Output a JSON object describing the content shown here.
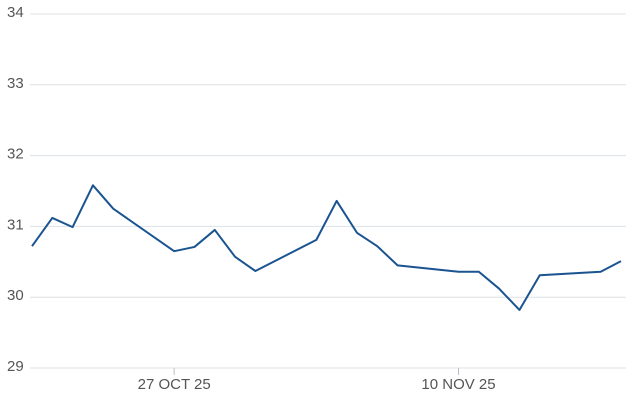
{
  "chart_data": {
    "type": "line",
    "x": [
      "2025-10-20",
      "2025-10-21",
      "2025-10-22",
      "2025-10-23",
      "2025-10-24",
      "2025-10-27",
      "2025-10-28",
      "2025-10-29",
      "2025-10-30",
      "2025-10-31",
      "2025-11-03",
      "2025-11-04",
      "2025-11-05",
      "2025-11-06",
      "2025-11-07",
      "2025-11-10",
      "2025-11-11",
      "2025-11-12",
      "2025-11-13",
      "2025-11-14",
      "2025-11-17",
      "2025-11-18"
    ],
    "series": [
      {
        "color": "#1a5490",
        "values": [
          30.72,
          31.12,
          30.99,
          31.58,
          31.25,
          30.65,
          30.71,
          30.95,
          30.57,
          30.37,
          30.81,
          31.36,
          30.91,
          30.72,
          30.45,
          30.36,
          30.36,
          30.12,
          29.82,
          30.31,
          30.36,
          30.51
        ]
      }
    ],
    "xlim": [
      "2025-10-20",
      "2025-11-18"
    ],
    "xticks": [
      {
        "value": "2025-10-27",
        "label": "27 OCT 25"
      },
      {
        "value": "2025-11-10",
        "label": "10 NOV 25"
      }
    ],
    "ylim": [
      29,
      34
    ],
    "yticks": [
      29,
      30,
      31,
      32,
      33,
      34
    ],
    "grid": true
  }
}
